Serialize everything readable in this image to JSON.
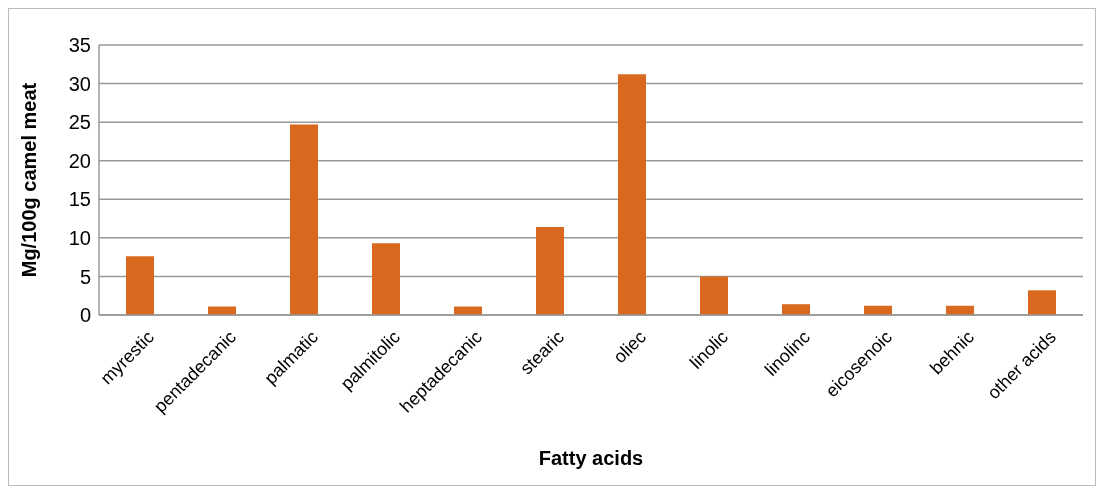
{
  "chart_data": {
    "type": "bar",
    "xlabel": "Fatty acids",
    "ylabel": "Mg/100g camel meat",
    "categories": [
      "myrestic",
      "pentadecanic",
      "palmatic",
      "palmitolic",
      "heptadecanic",
      "stearic",
      "oliec",
      "linolic",
      "linolinc",
      "eicosenoic",
      "behnic",
      "other acids"
    ],
    "values": [
      7.6,
      1.1,
      24.7,
      9.3,
      1.1,
      11.4,
      31.2,
      5.0,
      1.4,
      1.2,
      1.2,
      3.2
    ],
    "color": "#d9691f",
    "ylim": [
      0,
      35
    ],
    "yticks": [
      0,
      5,
      10,
      15,
      20,
      25,
      30,
      35
    ],
    "grid": "y",
    "legend": false
  }
}
